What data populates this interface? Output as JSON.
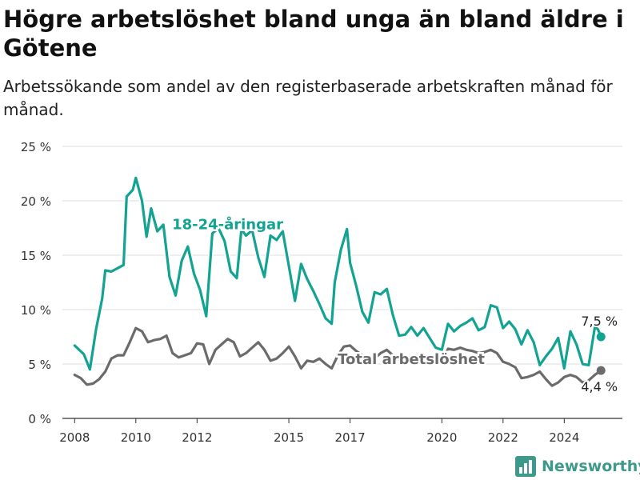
{
  "title": "Högre arbetslöshet bland unga än bland äldre i Götene",
  "subtitle": "Arbetssökande som andel av den registerbaserade arbetskraften månad för månad.",
  "brand": {
    "label": "Newsworthy",
    "icon": "bar-chart-logo-icon",
    "color": "#3d9a8b"
  },
  "chart_data": {
    "type": "line",
    "ylim": [
      0,
      25
    ],
    "y_ticks": [
      0,
      5,
      10,
      15,
      20,
      25
    ],
    "y_tick_labels": [
      "0 %",
      "5 %",
      "10 %",
      "15 %",
      "20 %",
      "25 %"
    ],
    "x_ticks": [
      2008,
      2010,
      2012,
      2015,
      2017,
      2020,
      2022,
      2024
    ],
    "x_tick_labels": [
      "2008",
      "2010",
      "2012",
      "2015",
      "2017",
      "2020",
      "2022",
      "2024"
    ],
    "grid": true,
    "series": [
      {
        "name": "18-24-åringar",
        "color": "#13a393",
        "end_label": "7,5 %",
        "points": [
          [
            2008.0,
            6.7
          ],
          [
            2008.3,
            5.9
          ],
          [
            2008.5,
            4.5
          ],
          [
            2008.7,
            8.2
          ],
          [
            2008.9,
            11.0
          ],
          [
            2009.0,
            13.6
          ],
          [
            2009.2,
            13.5
          ],
          [
            2009.4,
            13.8
          ],
          [
            2009.6,
            14.1
          ],
          [
            2009.7,
            20.4
          ],
          [
            2009.9,
            21.0
          ],
          [
            2010.0,
            22.1
          ],
          [
            2010.2,
            20.0
          ],
          [
            2010.35,
            16.7
          ],
          [
            2010.5,
            19.3
          ],
          [
            2010.7,
            17.2
          ],
          [
            2010.9,
            17.8
          ],
          [
            2011.1,
            13.0
          ],
          [
            2011.3,
            11.3
          ],
          [
            2011.5,
            14.5
          ],
          [
            2011.7,
            15.8
          ],
          [
            2011.9,
            13.3
          ],
          [
            2012.1,
            11.8
          ],
          [
            2012.3,
            9.4
          ],
          [
            2012.5,
            17.0
          ],
          [
            2012.7,
            17.5
          ],
          [
            2012.9,
            16.3
          ],
          [
            2013.1,
            13.5
          ],
          [
            2013.3,
            12.9
          ],
          [
            2013.45,
            17.4
          ],
          [
            2013.6,
            16.8
          ],
          [
            2013.8,
            17.3
          ],
          [
            2014.0,
            14.8
          ],
          [
            2014.2,
            13.0
          ],
          [
            2014.4,
            16.8
          ],
          [
            2014.6,
            16.4
          ],
          [
            2014.8,
            17.2
          ],
          [
            2015.0,
            14.0
          ],
          [
            2015.2,
            10.8
          ],
          [
            2015.4,
            14.2
          ],
          [
            2015.6,
            12.8
          ],
          [
            2015.8,
            11.7
          ],
          [
            2016.0,
            10.5
          ],
          [
            2016.2,
            9.2
          ],
          [
            2016.4,
            8.7
          ],
          [
            2016.5,
            12.5
          ],
          [
            2016.7,
            15.5
          ],
          [
            2016.9,
            17.4
          ],
          [
            2017.0,
            14.3
          ],
          [
            2017.2,
            12.2
          ],
          [
            2017.4,
            9.8
          ],
          [
            2017.6,
            8.8
          ],
          [
            2017.8,
            11.6
          ],
          [
            2018.0,
            11.4
          ],
          [
            2018.2,
            11.9
          ],
          [
            2018.4,
            9.5
          ],
          [
            2018.6,
            7.6
          ],
          [
            2018.8,
            7.7
          ],
          [
            2019.0,
            8.4
          ],
          [
            2019.2,
            7.6
          ],
          [
            2019.4,
            8.3
          ],
          [
            2019.6,
            7.4
          ],
          [
            2019.8,
            6.5
          ],
          [
            2020.0,
            6.3
          ],
          [
            2020.2,
            8.7
          ],
          [
            2020.4,
            8.0
          ],
          [
            2020.6,
            8.5
          ],
          [
            2020.8,
            8.8
          ],
          [
            2021.0,
            9.2
          ],
          [
            2021.2,
            8.1
          ],
          [
            2021.4,
            8.4
          ],
          [
            2021.6,
            10.4
          ],
          [
            2021.8,
            10.2
          ],
          [
            2022.0,
            8.3
          ],
          [
            2022.2,
            8.9
          ],
          [
            2022.4,
            8.2
          ],
          [
            2022.6,
            6.8
          ],
          [
            2022.8,
            8.1
          ],
          [
            2023.0,
            7.0
          ],
          [
            2023.2,
            4.9
          ],
          [
            2023.4,
            5.7
          ],
          [
            2023.6,
            6.4
          ],
          [
            2023.8,
            7.4
          ],
          [
            2024.0,
            4.6
          ],
          [
            2024.2,
            8.0
          ],
          [
            2024.4,
            6.8
          ],
          [
            2024.6,
            5.0
          ],
          [
            2024.8,
            4.9
          ],
          [
            2025.0,
            8.4
          ],
          [
            2025.1,
            8.2
          ],
          [
            2025.2,
            7.5
          ]
        ]
      },
      {
        "name": "Total arbetslöshet",
        "color": "#6b6b6e",
        "end_label": "4,4 %",
        "points": [
          [
            2008.0,
            4.0
          ],
          [
            2008.2,
            3.7
          ],
          [
            2008.4,
            3.1
          ],
          [
            2008.6,
            3.2
          ],
          [
            2008.8,
            3.6
          ],
          [
            2009.0,
            4.3
          ],
          [
            2009.2,
            5.5
          ],
          [
            2009.4,
            5.8
          ],
          [
            2009.6,
            5.8
          ],
          [
            2009.8,
            7.0
          ],
          [
            2010.0,
            8.3
          ],
          [
            2010.2,
            8.0
          ],
          [
            2010.4,
            7.0
          ],
          [
            2010.6,
            7.2
          ],
          [
            2010.8,
            7.3
          ],
          [
            2011.0,
            7.6
          ],
          [
            2011.2,
            6.0
          ],
          [
            2011.4,
            5.6
          ],
          [
            2011.6,
            5.8
          ],
          [
            2011.8,
            6.0
          ],
          [
            2012.0,
            6.9
          ],
          [
            2012.2,
            6.8
          ],
          [
            2012.4,
            5.0
          ],
          [
            2012.6,
            6.3
          ],
          [
            2012.8,
            6.8
          ],
          [
            2013.0,
            7.3
          ],
          [
            2013.2,
            7.0
          ],
          [
            2013.4,
            5.7
          ],
          [
            2013.6,
            6.0
          ],
          [
            2013.8,
            6.5
          ],
          [
            2014.0,
            7.0
          ],
          [
            2014.2,
            6.3
          ],
          [
            2014.4,
            5.3
          ],
          [
            2014.6,
            5.5
          ],
          [
            2014.8,
            6.0
          ],
          [
            2015.0,
            6.6
          ],
          [
            2015.2,
            5.7
          ],
          [
            2015.4,
            4.6
          ],
          [
            2015.6,
            5.3
          ],
          [
            2015.8,
            5.2
          ],
          [
            2016.0,
            5.5
          ],
          [
            2016.2,
            5.0
          ],
          [
            2016.4,
            4.6
          ],
          [
            2016.6,
            5.8
          ],
          [
            2016.8,
            6.6
          ],
          [
            2017.0,
            6.7
          ],
          [
            2017.2,
            6.2
          ],
          [
            2017.4,
            5.8
          ],
          [
            2017.6,
            5.6
          ],
          [
            2017.8,
            5.5
          ],
          [
            2018.0,
            6.0
          ],
          [
            2018.2,
            6.3
          ],
          [
            2018.4,
            5.8
          ],
          [
            2018.6,
            5.5
          ],
          [
            2018.8,
            5.3
          ],
          [
            2019.0,
            5.6
          ],
          [
            2019.2,
            5.8
          ],
          [
            2019.4,
            5.5
          ],
          [
            2019.6,
            5.1
          ],
          [
            2019.8,
            5.3
          ],
          [
            2020.0,
            5.2
          ],
          [
            2020.2,
            6.4
          ],
          [
            2020.4,
            6.3
          ],
          [
            2020.6,
            6.5
          ],
          [
            2020.8,
            6.3
          ],
          [
            2021.0,
            6.2
          ],
          [
            2021.2,
            6.0
          ],
          [
            2021.4,
            6.1
          ],
          [
            2021.6,
            6.3
          ],
          [
            2021.8,
            6.0
          ],
          [
            2022.0,
            5.2
          ],
          [
            2022.2,
            5.0
          ],
          [
            2022.4,
            4.7
          ],
          [
            2022.6,
            3.7
          ],
          [
            2022.8,
            3.8
          ],
          [
            2023.0,
            4.0
          ],
          [
            2023.2,
            4.3
          ],
          [
            2023.4,
            3.6
          ],
          [
            2023.6,
            3.0
          ],
          [
            2023.8,
            3.3
          ],
          [
            2024.0,
            3.8
          ],
          [
            2024.2,
            4.0
          ],
          [
            2024.4,
            3.8
          ],
          [
            2024.6,
            3.3
          ],
          [
            2024.8,
            3.5
          ],
          [
            2025.0,
            4.0
          ],
          [
            2025.2,
            4.4
          ]
        ]
      }
    ],
    "annotations": [
      {
        "series": 0,
        "text": "18-24-åringar",
        "x": 2013.0,
        "y": 17.4,
        "anchor": "middle",
        "color": "#13a393"
      },
      {
        "series": 1,
        "text": "Total arbetslöshet",
        "x": 2019.0,
        "y": 5.0,
        "anchor": "middle",
        "color": "#6b6b6e"
      }
    ]
  }
}
